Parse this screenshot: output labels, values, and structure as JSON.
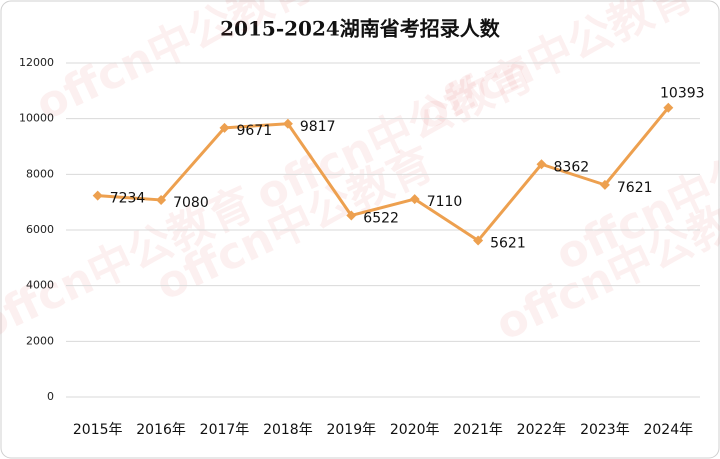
{
  "chart_data": {
    "type": "line",
    "title": "2015-2024湖南省考招录人数",
    "categories": [
      "2015年",
      "2016年",
      "2017年",
      "2018年",
      "2019年",
      "2020年",
      "2021年",
      "2022年",
      "2023年",
      "2024年"
    ],
    "values": [
      7234,
      7080,
      9671,
      9817,
      6522,
      7110,
      5621,
      8362,
      7621,
      10393
    ],
    "color": "#eda04f",
    "ylim": [
      0,
      12000
    ],
    "yticks": [
      0,
      2000,
      4000,
      6000,
      8000,
      10000,
      12000
    ],
    "grid": true,
    "watermark": "offcn中公教育"
  }
}
